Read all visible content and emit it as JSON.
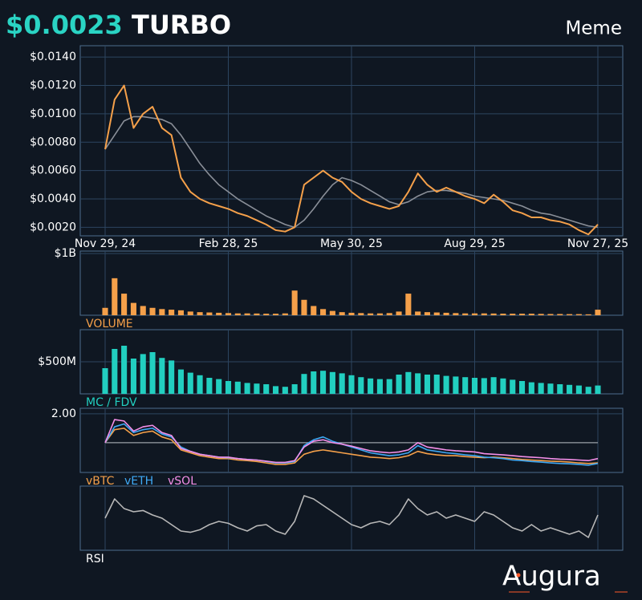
{
  "header": {
    "price": "$0.0023",
    "symbol": "TURBO",
    "category": "Meme"
  },
  "brand": "Augura",
  "chart_data": [
    {
      "type": "line",
      "grid": true,
      "categories": [
        "Nov 29, 24",
        null,
        null,
        null,
        null,
        null,
        null,
        null,
        null,
        null,
        null,
        null,
        null,
        "Feb 28, 25",
        null,
        null,
        null,
        null,
        null,
        null,
        null,
        null,
        null,
        null,
        null,
        null,
        "May 30, 25",
        null,
        null,
        null,
        null,
        null,
        null,
        null,
        null,
        null,
        null,
        null,
        null,
        "Aug 29, 25",
        null,
        null,
        null,
        null,
        null,
        null,
        null,
        null,
        null,
        null,
        null,
        null,
        "Nov 27, 25"
      ],
      "ylim": [
        0.0014,
        0.0148
      ],
      "yticks": [
        {
          "value": 0.002,
          "label": "$0.0020"
        },
        {
          "value": 0.004,
          "label": "$0.0040"
        },
        {
          "value": 0.006,
          "label": "$0.0060"
        },
        {
          "value": 0.008,
          "label": "$0.0080"
        },
        {
          "value": 0.01,
          "label": "$0.0100"
        },
        {
          "value": 0.012,
          "label": "$0.0120"
        },
        {
          "value": 0.014,
          "label": "$0.0140"
        }
      ],
      "series": [
        {
          "color": "#8a8f98",
          "values": [
            0.0075,
            0.0085,
            0.0095,
            0.0098,
            0.0098,
            0.0097,
            0.0096,
            0.0093,
            0.0085,
            0.0075,
            0.0065,
            0.0057,
            0.005,
            0.0045,
            0.004,
            0.0036,
            0.0032,
            0.0028,
            0.0025,
            0.0022,
            0.002,
            0.0025,
            0.0033,
            0.0042,
            0.005,
            0.0055,
            0.0053,
            0.005,
            0.0046,
            0.0042,
            0.0038,
            0.0036,
            0.0038,
            0.0042,
            0.0045,
            0.0046,
            0.0046,
            0.0045,
            0.0044,
            0.0042,
            0.0041,
            0.004,
            0.0039,
            0.0037,
            0.0035,
            0.0032,
            0.003,
            0.0029,
            0.0027,
            0.0025,
            0.0023,
            0.0021,
            0.002
          ]
        },
        {
          "color": "#f5a04a",
          "values": [
            0.0075,
            0.011,
            0.012,
            0.009,
            0.01,
            0.0105,
            0.009,
            0.0085,
            0.0055,
            0.0045,
            0.004,
            0.0037,
            0.0035,
            0.0033,
            0.003,
            0.0028,
            0.0025,
            0.0022,
            0.0018,
            0.0017,
            0.002,
            0.005,
            0.0055,
            0.006,
            0.0055,
            0.0052,
            0.0045,
            0.004,
            0.0037,
            0.0035,
            0.0033,
            0.0035,
            0.0045,
            0.0058,
            0.005,
            0.0045,
            0.0048,
            0.0045,
            0.0042,
            0.004,
            0.0037,
            0.0043,
            0.0038,
            0.0032,
            0.003,
            0.0027,
            0.0027,
            0.0025,
            0.0024,
            0.0022,
            0.0018,
            0.0015,
            0.0022
          ]
        }
      ]
    },
    {
      "type": "bar",
      "title": "VOLUME",
      "color": "#f5a04a",
      "grid": true,
      "ylim": [
        0,
        1040000000
      ],
      "yticks": [
        {
          "value": 1000000000,
          "label": "$1B"
        }
      ],
      "values": [
        120000000,
        600000000,
        350000000,
        200000000,
        150000000,
        120000000,
        100000000,
        90000000,
        80000000,
        60000000,
        50000000,
        45000000,
        40000000,
        35000000,
        30000000,
        30000000,
        28000000,
        25000000,
        25000000,
        30000000,
        400000000,
        250000000,
        150000000,
        100000000,
        70000000,
        50000000,
        40000000,
        35000000,
        30000000,
        30000000,
        35000000,
        60000000,
        350000000,
        60000000,
        50000000,
        45000000,
        40000000,
        35000000,
        30000000,
        30000000,
        30000000,
        28000000,
        26000000,
        25000000,
        25000000,
        25000000,
        22000000,
        20000000,
        20000000,
        18000000,
        18000000,
        15000000,
        90000000
      ]
    },
    {
      "type": "bar",
      "title": "MC / FDV",
      "color": "#22cfc0",
      "grid": true,
      "ylim": [
        0,
        1000000000
      ],
      "yticks": [
        {
          "value": 500000000,
          "label": "$500M"
        }
      ],
      "values": [
        400000000,
        700000000,
        750000000,
        550000000,
        620000000,
        650000000,
        560000000,
        520000000,
        380000000,
        330000000,
        290000000,
        250000000,
        230000000,
        200000000,
        190000000,
        170000000,
        160000000,
        150000000,
        120000000,
        110000000,
        150000000,
        310000000,
        350000000,
        360000000,
        340000000,
        320000000,
        290000000,
        260000000,
        240000000,
        230000000,
        230000000,
        300000000,
        340000000,
        320000000,
        300000000,
        300000000,
        280000000,
        270000000,
        260000000,
        250000000,
        245000000,
        260000000,
        240000000,
        220000000,
        200000000,
        180000000,
        170000000,
        160000000,
        150000000,
        140000000,
        130000000,
        110000000,
        130000000
      ]
    },
    {
      "type": "line",
      "grid": true,
      "reference_line": 1,
      "ylim": [
        -0.03,
        2.19
      ],
      "yticks": [
        {
          "value": 2,
          "label": "2.00"
        }
      ],
      "series": [
        {
          "name": "vBTC",
          "color": "#f5a04a",
          "values": [
            1.0,
            1.45,
            1.5,
            1.25,
            1.35,
            1.4,
            1.2,
            1.1,
            0.75,
            0.65,
            0.55,
            0.5,
            0.45,
            0.45,
            0.4,
            0.38,
            0.35,
            0.3,
            0.25,
            0.25,
            0.3,
            0.6,
            0.7,
            0.75,
            0.7,
            0.65,
            0.6,
            0.55,
            0.5,
            0.48,
            0.45,
            0.48,
            0.55,
            0.7,
            0.62,
            0.58,
            0.55,
            0.55,
            0.52,
            0.5,
            0.48,
            0.5,
            0.48,
            0.45,
            0.42,
            0.4,
            0.38,
            0.36,
            0.35,
            0.33,
            0.3,
            0.28,
            0.3
          ]
        },
        {
          "name": "vETH",
          "color": "#3fa9f5",
          "values": [
            1.0,
            1.55,
            1.65,
            1.35,
            1.45,
            1.5,
            1.3,
            1.2,
            0.85,
            0.7,
            0.6,
            0.55,
            0.5,
            0.48,
            0.45,
            0.42,
            0.4,
            0.35,
            0.3,
            0.3,
            0.35,
            0.9,
            1.1,
            1.2,
            1.05,
            0.95,
            0.85,
            0.75,
            0.65,
            0.6,
            0.55,
            0.58,
            0.65,
            0.9,
            0.75,
            0.7,
            0.65,
            0.62,
            0.58,
            0.55,
            0.5,
            0.48,
            0.45,
            0.4,
            0.38,
            0.35,
            0.33,
            0.3,
            0.28,
            0.27,
            0.25,
            0.22,
            0.28
          ]
        },
        {
          "name": "vSOL",
          "color": "#f48fe8",
          "values": [
            1.0,
            1.8,
            1.75,
            1.4,
            1.55,
            1.6,
            1.35,
            1.25,
            0.8,
            0.7,
            0.6,
            0.55,
            0.5,
            0.5,
            0.45,
            0.42,
            0.4,
            0.36,
            0.32,
            0.32,
            0.38,
            0.85,
            1.05,
            1.1,
            1.0,
            0.95,
            0.88,
            0.8,
            0.72,
            0.68,
            0.65,
            0.68,
            0.75,
            1.0,
            0.85,
            0.8,
            0.75,
            0.72,
            0.7,
            0.68,
            0.62,
            0.6,
            0.58,
            0.55,
            0.52,
            0.5,
            0.48,
            0.45,
            0.43,
            0.42,
            0.4,
            0.38,
            0.45
          ]
        }
      ]
    },
    {
      "type": "line",
      "title": "RSI",
      "color": "#b8b8b8",
      "grid": true,
      "ylim": [
        0,
        100
      ],
      "values": [
        50,
        80,
        65,
        60,
        62,
        55,
        50,
        40,
        30,
        28,
        32,
        40,
        45,
        42,
        35,
        30,
        38,
        40,
        30,
        25,
        45,
        85,
        80,
        70,
        60,
        50,
        40,
        35,
        42,
        45,
        40,
        55,
        80,
        65,
        55,
        60,
        50,
        55,
        50,
        45,
        60,
        55,
        45,
        35,
        30,
        40,
        30,
        35,
        30,
        25,
        30,
        20,
        55
      ]
    }
  ]
}
